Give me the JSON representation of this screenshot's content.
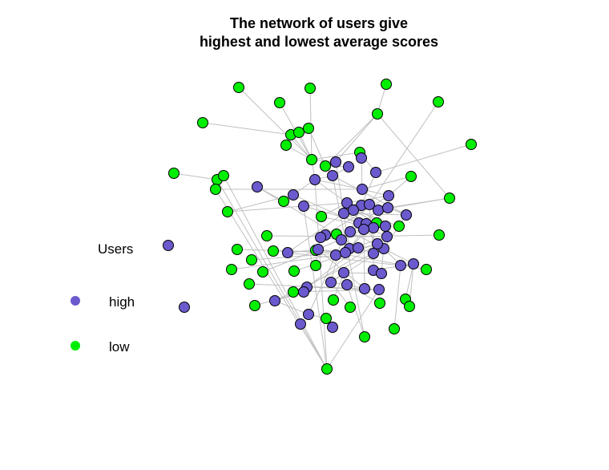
{
  "title": {
    "line1": "The network of users give",
    "line2": "highest and lowest average scores"
  },
  "legend": {
    "title": "Users",
    "items": [
      {
        "label": "high",
        "color": "#6a5acd"
      },
      {
        "label": "low",
        "color": "#00ee00"
      }
    ]
  },
  "colors": {
    "high": "#6a5acd",
    "low": "#00ee00",
    "edge": "#c0c0c0",
    "node_border": "#000000"
  }
}
